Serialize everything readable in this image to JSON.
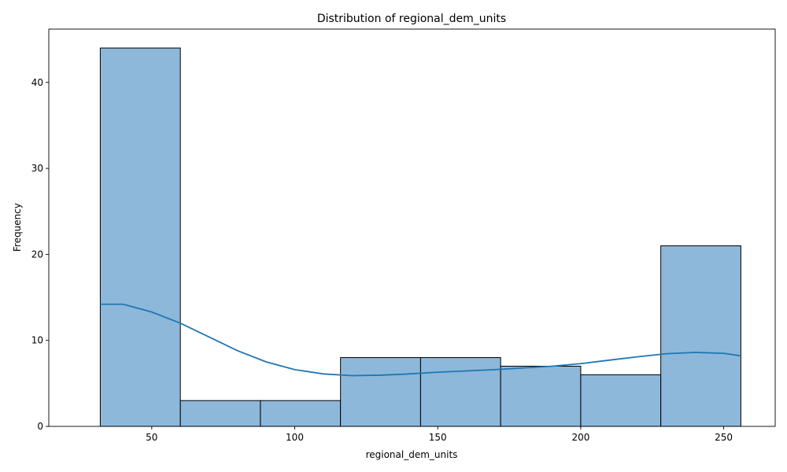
{
  "chart_data": {
    "type": "bar",
    "subtype": "histogram",
    "title": "Distribution of regional_dem_units",
    "xlabel": "regional_dem_units",
    "ylabel": "Frequency",
    "bin_edges": [
      32,
      60,
      88,
      116,
      144,
      172,
      200,
      228,
      256
    ],
    "values": [
      44,
      3,
      3,
      8,
      8,
      7,
      6,
      21
    ],
    "xlim": [
      14,
      268
    ],
    "ylim": [
      0,
      46.2
    ],
    "xticks": [
      50,
      100,
      150,
      200,
      250
    ],
    "yticks": [
      0,
      10,
      20,
      30,
      40
    ],
    "kde": {
      "x": [
        32,
        40,
        50,
        60,
        70,
        80,
        90,
        100,
        110,
        120,
        130,
        140,
        150,
        160,
        170,
        180,
        190,
        200,
        210,
        220,
        230,
        240,
        250,
        256
      ],
      "y": [
        14.2,
        14.2,
        13.3,
        12.0,
        10.4,
        8.8,
        7.5,
        6.6,
        6.1,
        5.9,
        5.95,
        6.1,
        6.3,
        6.45,
        6.6,
        6.8,
        7.0,
        7.3,
        7.7,
        8.1,
        8.45,
        8.6,
        8.5,
        8.2
      ]
    },
    "grid": false,
    "colors": {
      "bar_fill": "#8db8da",
      "bar_edge": "#000000",
      "kde_line": "#1f77b4"
    }
  }
}
